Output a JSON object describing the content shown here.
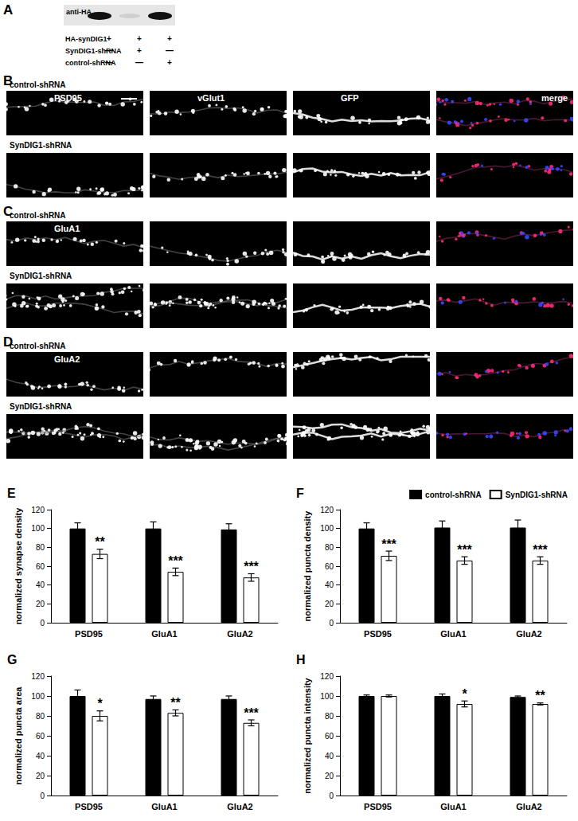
{
  "panels": {
    "blot": {
      "letter": "A",
      "label": "anti-HA",
      "rows": [
        {
          "label": "HA-synDIG1",
          "signs": [
            "+",
            "+",
            "+"
          ]
        },
        {
          "label": "SynDIG1-shRNA",
          "signs": [
            "—",
            "+",
            "—"
          ]
        },
        {
          "label": "control-shRNA",
          "signs": [
            "—",
            "—",
            "+"
          ]
        }
      ]
    },
    "images": [
      {
        "letter": "B",
        "rows": [
          "control-shRNA",
          "SynDIG1-shRNA"
        ],
        "channels": [
          "PSD95",
          "vGlut1",
          "GFP",
          "merge"
        ]
      },
      {
        "letter": "C",
        "rows": [
          "control-shRNA",
          "SynDIG1-shRNA"
        ],
        "channels": [
          "GluA1"
        ]
      },
      {
        "letter": "D",
        "rows": [
          "control-shRNA",
          "SynDIG1-shRNA"
        ],
        "channels": [
          "GluA2"
        ]
      }
    ]
  },
  "chart_data": [
    {
      "type": "bar",
      "title": "E",
      "y_label": "normalized synapse density",
      "categories": [
        "PSD95",
        "GluA1",
        "GluA2"
      ],
      "series": [
        {
          "name": "control-shRNA",
          "color": "#000000",
          "values": [
            100,
            100,
            99
          ],
          "errors": [
            6,
            7,
            6
          ]
        },
        {
          "name": "SynDIG1-shRNA",
          "color": "#ffffff",
          "values": [
            73,
            54,
            48
          ],
          "errors": [
            5,
            4,
            4
          ],
          "significance": [
            "**",
            "***",
            "***"
          ]
        }
      ],
      "ylim": [
        0,
        120
      ],
      "yticks": [
        0,
        20,
        40,
        60,
        80,
        100,
        120
      ],
      "grid": false
    },
    {
      "type": "bar",
      "title": "F",
      "y_label": "normalized puncta density",
      "categories": [
        "PSD95",
        "GluA1",
        "GluA2"
      ],
      "series": [
        {
          "name": "control-shRNA",
          "color": "#000000",
          "values": [
            100,
            101,
            101
          ],
          "errors": [
            6,
            7,
            8
          ]
        },
        {
          "name": "SynDIG1-shRNA",
          "color": "#ffffff",
          "values": [
            71,
            66,
            66
          ],
          "errors": [
            5,
            4,
            4
          ],
          "significance": [
            "***",
            "***",
            "***"
          ]
        }
      ],
      "ylim": [
        0,
        120
      ],
      "yticks": [
        0,
        20,
        40,
        60,
        80,
        100,
        120
      ],
      "grid": false,
      "legend": "top-right"
    },
    {
      "type": "bar",
      "title": "G",
      "y_label": "normalized puncta area",
      "categories": [
        "PSD95",
        "GluA1",
        "GluA2"
      ],
      "series": [
        {
          "name": "control-shRNA",
          "color": "#000000",
          "values": [
            100,
            97,
            97
          ],
          "errors": [
            6,
            3,
            3
          ]
        },
        {
          "name": "SynDIG1-shRNA",
          "color": "#ffffff",
          "values": [
            80,
            83,
            73
          ],
          "errors": [
            5,
            3,
            3
          ],
          "significance": [
            "*",
            "**",
            "***"
          ]
        }
      ],
      "ylim": [
        0,
        120
      ],
      "yticks": [
        0,
        20,
        40,
        60,
        80,
        100,
        120
      ],
      "grid": false
    },
    {
      "type": "bar",
      "title": "H",
      "y_label": "normalized puncta intensity",
      "categories": [
        "PSD95",
        "GluA1",
        "GluA2"
      ],
      "series": [
        {
          "name": "control-shRNA",
          "color": "#000000",
          "values": [
            100,
            100,
            99
          ],
          "errors": [
            1,
            2,
            1
          ]
        },
        {
          "name": "SynDIG1-shRNA",
          "color": "#ffffff",
          "values": [
            100,
            92,
            92
          ],
          "errors": [
            1,
            3,
            1
          ],
          "significance": [
            null,
            "*",
            "**"
          ]
        }
      ],
      "ylim": [
        0,
        120
      ],
      "yticks": [
        0,
        20,
        40,
        60,
        80,
        100,
        120
      ],
      "grid": false
    }
  ]
}
